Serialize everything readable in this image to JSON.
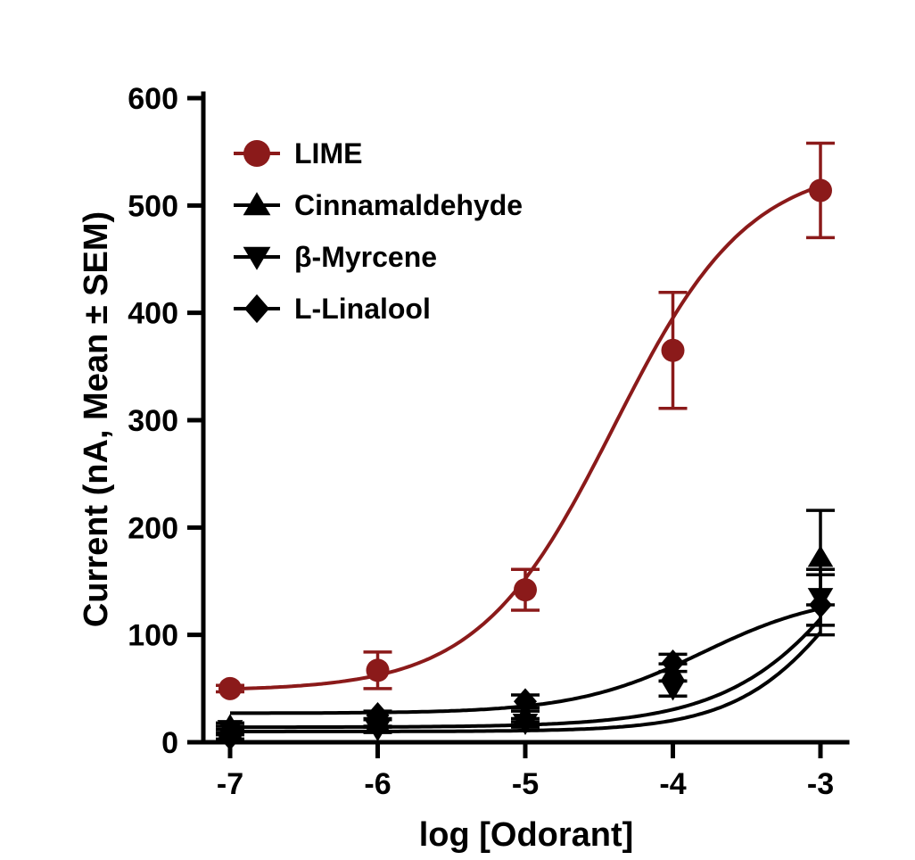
{
  "chart_data": {
    "type": "scatter",
    "title": "",
    "xlabel": "log [Odorant]",
    "ylabel": "Current (nA, Mean ± SEM)",
    "x": [
      -7,
      -6,
      -5,
      -4,
      -3
    ],
    "x_ticks": [
      "-7",
      "-6",
      "-5",
      "-4",
      "-3"
    ],
    "y_ticks": [
      "0",
      "100",
      "200",
      "300",
      "400",
      "500",
      "600"
    ],
    "xlim": [
      -7.1,
      -2.8
    ],
    "ylim": [
      0,
      600
    ],
    "grid": false,
    "legend_position": "top-left",
    "fit": "sigmoidal dose-response curve per series",
    "series": [
      {
        "name": "LIME",
        "marker": "circle",
        "color": "#8b1a1a",
        "values": [
          50,
          67,
          142,
          365,
          514
        ],
        "sem": [
          3,
          17,
          19,
          54,
          44
        ],
        "fit_curve": {
          "bottom": 48,
          "top": 540,
          "logEC50": -4.4,
          "hill": 0.95
        }
      },
      {
        "name": "Cinnamaldehyde",
        "marker": "triangle-up",
        "color": "#000000",
        "values": [
          15,
          18,
          24,
          65,
          172
        ],
        "sem": [
          3,
          4,
          5,
          8,
          44
        ],
        "fit_curve": {
          "bottom": 14,
          "top": 400,
          "logEC50": -2.5,
          "hill": 0.9
        }
      },
      {
        "name": "β-Myrcene",
        "marker": "triangle-down",
        "color": "#000000",
        "values": [
          12,
          12,
          18,
          50,
          135
        ],
        "sem": [
          3,
          3,
          4,
          7,
          26
        ],
        "fit_curve": {
          "bottom": 10,
          "top": 300,
          "logEC50": -2.7,
          "hill": 1.1
        }
      },
      {
        "name": "L-Linalool",
        "marker": "diamond",
        "color": "#000000",
        "values": [
          5,
          25,
          38,
          74,
          128
        ],
        "sem": [
          2,
          4,
          6,
          8,
          28
        ],
        "fit_curve": {
          "bottom": 27,
          "top": 140,
          "logEC50": -3.8,
          "hill": 1.0
        }
      }
    ]
  }
}
